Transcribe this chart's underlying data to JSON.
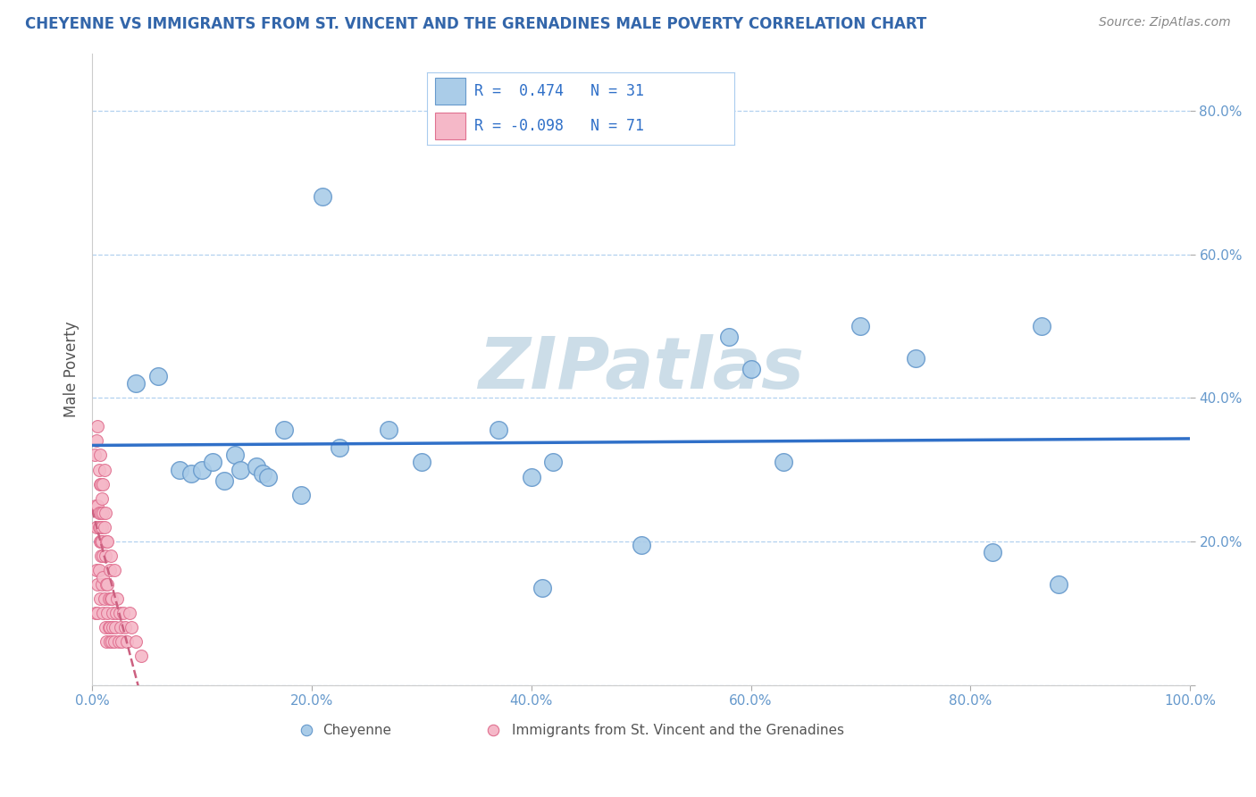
{
  "title": "CHEYENNE VS IMMIGRANTS FROM ST. VINCENT AND THE GRENADINES MALE POVERTY CORRELATION CHART",
  "source_text": "Source: ZipAtlas.com",
  "ylabel": "Male Poverty",
  "xlim": [
    0,
    1.0
  ],
  "ylim": [
    0,
    0.88
  ],
  "xticks": [
    0.0,
    0.2,
    0.4,
    0.6,
    0.8,
    1.0
  ],
  "xticklabels": [
    "0.0%",
    "20.0%",
    "40.0%",
    "60.0%",
    "80.0%",
    "100.0%"
  ],
  "yticks": [
    0.0,
    0.2,
    0.4,
    0.6,
    0.8
  ],
  "yticklabels": [
    "",
    "20.0%",
    "40.0%",
    "60.0%",
    "80.0%"
  ],
  "cheyenne_color": "#aacce8",
  "cheyenne_edge": "#6699cc",
  "immigrant_color": "#f5b8c8",
  "immigrant_edge": "#e07090",
  "regression_blue": "#3070c8",
  "regression_pink": "#cc6080",
  "title_color": "#3366aa",
  "source_color": "#888888",
  "ylabel_color": "#555555",
  "tick_color": "#6699cc",
  "grid_color": "#aaccee",
  "background_color": "#ffffff",
  "watermark_color": "#ccdde8",
  "cheyenne_x": [
    0.04,
    0.06,
    0.08,
    0.09,
    0.1,
    0.11,
    0.12,
    0.13,
    0.135,
    0.15,
    0.155,
    0.16,
    0.175,
    0.19,
    0.21,
    0.225,
    0.27,
    0.3,
    0.37,
    0.4,
    0.41,
    0.42,
    0.5,
    0.58,
    0.6,
    0.63,
    0.7,
    0.75,
    0.82,
    0.865,
    0.88
  ],
  "cheyenne_y": [
    0.42,
    0.43,
    0.3,
    0.295,
    0.3,
    0.31,
    0.285,
    0.32,
    0.3,
    0.305,
    0.295,
    0.29,
    0.355,
    0.265,
    0.68,
    0.33,
    0.355,
    0.31,
    0.355,
    0.29,
    0.135,
    0.31,
    0.195,
    0.485,
    0.44,
    0.31,
    0.5,
    0.455,
    0.185,
    0.5,
    0.14
  ],
  "immigrant_x": [
    0.002,
    0.003,
    0.003,
    0.004,
    0.004,
    0.004,
    0.005,
    0.005,
    0.005,
    0.005,
    0.006,
    0.006,
    0.006,
    0.006,
    0.007,
    0.007,
    0.007,
    0.007,
    0.007,
    0.008,
    0.008,
    0.008,
    0.008,
    0.009,
    0.009,
    0.009,
    0.009,
    0.01,
    0.01,
    0.01,
    0.01,
    0.01,
    0.011,
    0.011,
    0.011,
    0.012,
    0.012,
    0.012,
    0.013,
    0.013,
    0.013,
    0.014,
    0.014,
    0.014,
    0.015,
    0.015,
    0.016,
    0.016,
    0.016,
    0.017,
    0.017,
    0.018,
    0.018,
    0.019,
    0.019,
    0.02,
    0.02,
    0.021,
    0.022,
    0.023,
    0.024,
    0.025,
    0.026,
    0.027,
    0.028,
    0.03,
    0.032,
    0.034,
    0.036,
    0.04,
    0.045
  ],
  "immigrant_y": [
    0.32,
    0.1,
    0.25,
    0.16,
    0.22,
    0.34,
    0.36,
    0.1,
    0.25,
    0.14,
    0.22,
    0.16,
    0.24,
    0.3,
    0.22,
    0.28,
    0.2,
    0.32,
    0.12,
    0.2,
    0.18,
    0.28,
    0.24,
    0.2,
    0.26,
    0.22,
    0.14,
    0.18,
    0.28,
    0.1,
    0.15,
    0.24,
    0.22,
    0.3,
    0.12,
    0.24,
    0.18,
    0.08,
    0.2,
    0.14,
    0.06,
    0.14,
    0.1,
    0.2,
    0.08,
    0.12,
    0.16,
    0.08,
    0.06,
    0.12,
    0.18,
    0.06,
    0.12,
    0.1,
    0.08,
    0.16,
    0.06,
    0.08,
    0.1,
    0.12,
    0.06,
    0.1,
    0.08,
    0.06,
    0.1,
    0.08,
    0.06,
    0.1,
    0.08,
    0.06,
    0.04
  ]
}
